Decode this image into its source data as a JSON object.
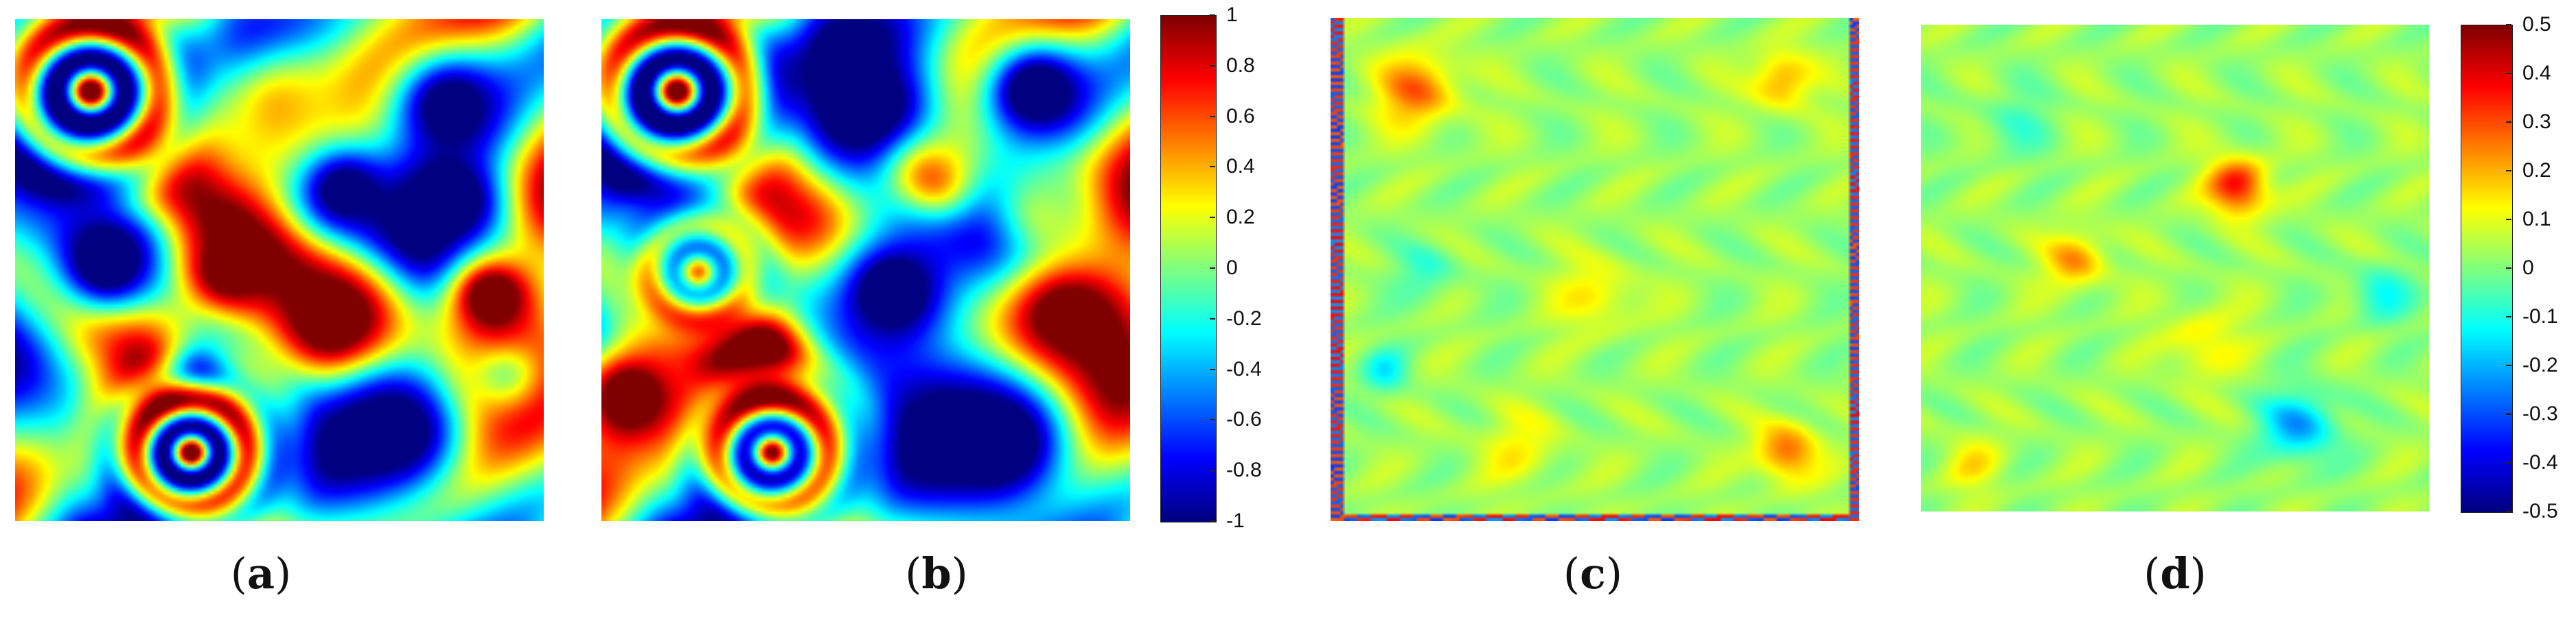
{
  "chart_data": [
    {
      "type": "heatmap",
      "caption": "(a)",
      "colormap": "jet",
      "clim": [
        -1,
        1
      ],
      "description_fields": {
        "blobs": [
          {
            "x": 0.14,
            "y": 0.14,
            "r": 0.11,
            "v": 1,
            "ringed": true
          },
          {
            "x": 0.5,
            "y": 0.18,
            "r": 0.1,
            "v": 0.3
          },
          {
            "x": 0.82,
            "y": 0.17,
            "r": 0.09,
            "v": -0.9
          },
          {
            "x": 0.62,
            "y": 0.34,
            "r": 0.06,
            "v": -0.9
          },
          {
            "x": 0.82,
            "y": 0.36,
            "r": 0.07,
            "v": -1
          },
          {
            "x": 0.17,
            "y": 0.48,
            "r": 0.07,
            "v": -1
          },
          {
            "x": 0.4,
            "y": 0.5,
            "r": 0.06,
            "v": 0.9
          },
          {
            "x": 0.6,
            "y": 0.6,
            "r": 0.08,
            "v": 1
          },
          {
            "x": 0.35,
            "y": 0.68,
            "r": 0.05,
            "v": -0.4
          },
          {
            "x": 0.33,
            "y": 0.86,
            "r": 0.09,
            "v": 1,
            "ringed": true
          },
          {
            "x": 0.72,
            "y": 0.82,
            "r": 0.08,
            "v": -0.9
          },
          {
            "x": 0.92,
            "y": 0.7,
            "r": 0.06,
            "v": 0.0
          },
          {
            "x": 0.9,
            "y": 0.55,
            "r": 0.06,
            "v": 1
          }
        ]
      }
    },
    {
      "type": "heatmap",
      "caption": "(b)",
      "colormap": "jet",
      "clim": [
        -1,
        1
      ],
      "description_fields": {
        "blobs": [
          {
            "x": 0.14,
            "y": 0.14,
            "r": 0.11,
            "v": 1,
            "ringed": true
          },
          {
            "x": 0.5,
            "y": 0.18,
            "r": 0.1,
            "v": -1
          },
          {
            "x": 0.82,
            "y": 0.14,
            "r": 0.08,
            "v": -1
          },
          {
            "x": 0.62,
            "y": 0.32,
            "r": 0.06,
            "v": 0.5
          },
          {
            "x": 0.83,
            "y": 0.37,
            "r": 0.07,
            "v": 0.0
          },
          {
            "x": 0.18,
            "y": 0.5,
            "r": 0.08,
            "v": 0.4,
            "ringed": true
          },
          {
            "x": 0.55,
            "y": 0.54,
            "r": 0.1,
            "v": -1
          },
          {
            "x": 0.88,
            "y": 0.6,
            "r": 0.1,
            "v": 1
          },
          {
            "x": 0.3,
            "y": 0.66,
            "r": 0.05,
            "v": 1
          },
          {
            "x": 0.32,
            "y": 0.86,
            "r": 0.09,
            "v": 0.8,
            "ringed": true
          },
          {
            "x": 0.75,
            "y": 0.84,
            "r": 0.1,
            "v": -1
          },
          {
            "x": 0.05,
            "y": 0.75,
            "r": 0.08,
            "v": 1
          }
        ]
      }
    },
    {
      "type": "heatmap",
      "caption": "(c)",
      "colormap": "jet",
      "clim": [
        -0.5,
        0.5
      ],
      "description_fields": {
        "blobs": [
          {
            "x": 0.16,
            "y": 0.14,
            "r": 0.05,
            "v": 0.25
          },
          {
            "x": 0.85,
            "y": 0.12,
            "r": 0.04,
            "v": 0.2
          },
          {
            "x": 0.18,
            "y": 0.5,
            "r": 0.04,
            "v": -0.1
          },
          {
            "x": 0.5,
            "y": 0.55,
            "r": 0.05,
            "v": 0.12
          },
          {
            "x": 0.86,
            "y": 0.86,
            "r": 0.04,
            "v": 0.25
          },
          {
            "x": 0.1,
            "y": 0.7,
            "r": 0.03,
            "v": -0.15
          },
          {
            "x": 0.35,
            "y": 0.85,
            "r": 0.05,
            "v": 0.1
          }
        ]
      }
    },
    {
      "type": "heatmap",
      "caption": "(d)",
      "colormap": "jet",
      "clim": [
        -0.5,
        0.5
      ],
      "description_fields": {
        "blobs": [
          {
            "x": 0.62,
            "y": 0.33,
            "r": 0.04,
            "v": 0.35
          },
          {
            "x": 0.3,
            "y": 0.48,
            "r": 0.04,
            "v": 0.2
          },
          {
            "x": 0.74,
            "y": 0.82,
            "r": 0.05,
            "v": -0.25
          },
          {
            "x": 0.18,
            "y": 0.2,
            "r": 0.05,
            "v": -0.08
          },
          {
            "x": 0.55,
            "y": 0.65,
            "r": 0.05,
            "v": 0.12
          },
          {
            "x": 0.9,
            "y": 0.55,
            "r": 0.04,
            "v": -0.15
          },
          {
            "x": 0.1,
            "y": 0.9,
            "r": 0.04,
            "v": 0.1
          }
        ]
      }
    }
  ],
  "colorbars": [
    {
      "range": [
        -1,
        1
      ],
      "ticks": [
        "1",
        "0.8",
        "0.6",
        "0.4",
        "0.2",
        "0",
        "-0.2",
        "-0.4",
        "-0.6",
        "-0.8",
        "-1"
      ]
    },
    {
      "range": [
        -0.5,
        0.5
      ],
      "ticks": [
        "0.5",
        "0.4",
        "0.3",
        "0.2",
        "0.1",
        "0",
        "-0.1",
        "-0.2",
        "-0.3",
        "-0.4",
        "-0.5"
      ]
    }
  ],
  "captions": {
    "a": {
      "open": "(",
      "letter": "a",
      "close": ")"
    },
    "b": {
      "open": "(",
      "letter": "b",
      "close": ")"
    },
    "c": {
      "open": "(",
      "letter": "c",
      "close": ")"
    },
    "d": {
      "open": "(",
      "letter": "d",
      "close": ")"
    }
  }
}
